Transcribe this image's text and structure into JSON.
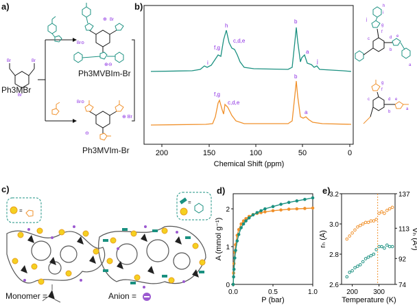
{
  "panels": {
    "a": "a)",
    "b": "b)",
    "c": "c)",
    "d": "d)",
    "e": "e)"
  },
  "scheme": {
    "start": "Ph3MBr",
    "product_top": "Ph3MVBIm-Br",
    "product_bottom": "Ph3MVIm-Br",
    "br": "Br",
    "br_minus": "Br"
  },
  "nmr": {
    "xlabel": "Chemical Shift (ppm)",
    "ticks": [
      "200",
      "150",
      "100",
      "50",
      "0"
    ],
    "top_peaks": [
      "i",
      "f,g",
      "h",
      "c,d,e",
      "b",
      "a",
      "j"
    ],
    "bottom_peaks": [
      "f,g",
      "c,d,e",
      "b",
      "a"
    ],
    "top_color": "#1a9080",
    "bottom_color": "#f0902a"
  },
  "polymer": {
    "monomer_label": "Monomer =",
    "anion_label": "Anion ="
  },
  "chart_data": [
    {
      "type": "scatter",
      "xlabel": "P (bar)",
      "ylabel": "A (mmol g⁻¹)",
      "xlim": [
        0,
        1.0
      ],
      "ylim": [
        0,
        2.4
      ],
      "xticks": [
        "0.0",
        "0.5",
        "1.0"
      ],
      "yticks": [
        "0",
        "1",
        "2"
      ],
      "series": [
        {
          "color": "#f0902a",
          "x": [
            0.0,
            0.005,
            0.01,
            0.02,
            0.03,
            0.05,
            0.07,
            0.1,
            0.13,
            0.16,
            0.2,
            0.25,
            0.3,
            0.35,
            0.4,
            0.5,
            0.6,
            0.7,
            0.8,
            0.9,
            1.0
          ],
          "y": [
            0.0,
            0.3,
            0.55,
            0.85,
            1.05,
            1.3,
            1.45,
            1.6,
            1.68,
            1.74,
            1.8,
            1.85,
            1.88,
            1.9,
            1.92,
            1.95,
            1.97,
            1.99,
            2.0,
            2.01,
            2.02
          ]
        },
        {
          "color": "#1a9080",
          "x": [
            0.0,
            0.005,
            0.01,
            0.02,
            0.03,
            0.05,
            0.07,
            0.1,
            0.13,
            0.16,
            0.2,
            0.25,
            0.3,
            0.35,
            0.4,
            0.5,
            0.6,
            0.7,
            0.8,
            0.9,
            1.0
          ],
          "y": [
            0.0,
            0.2,
            0.4,
            0.7,
            0.9,
            1.15,
            1.32,
            1.5,
            1.6,
            1.68,
            1.76,
            1.84,
            1.9,
            1.95,
            2.0,
            2.06,
            2.12,
            2.17,
            2.21,
            2.25,
            2.29
          ]
        }
      ]
    },
    {
      "type": "scatter",
      "xlabel": "Temperature (K)",
      "ylabel": "rₕ (Å)",
      "y2label": "Vₕ (Å³)",
      "xlim": [
        160,
        360
      ],
      "ylim": [
        2.6,
        3.2
      ],
      "y2lim": [
        74,
        137
      ],
      "xticks": [
        "200",
        "300"
      ],
      "yticks": [
        "2.6",
        "2.8",
        "3.0",
        "3.2"
      ],
      "y2ticks": [
        "74",
        "92",
        "113",
        "137"
      ],
      "vline": 295,
      "series": [
        {
          "color": "#f0902a",
          "x": [
            180,
            190,
            200,
            210,
            220,
            230,
            240,
            250,
            260,
            270,
            280,
            290,
            300,
            310,
            320,
            330,
            340,
            350
          ],
          "y": [
            2.9,
            2.92,
            2.94,
            2.96,
            2.98,
            2.99,
            3.0,
            3.01,
            3.01,
            3.02,
            3.02,
            3.03,
            3.07,
            3.08,
            3.07,
            3.09,
            3.1,
            3.11
          ]
        },
        {
          "color": "#1a9080",
          "x": [
            180,
            190,
            200,
            210,
            220,
            230,
            240,
            250,
            260,
            270,
            280,
            290,
            300,
            310,
            320,
            330,
            340,
            350
          ],
          "y": [
            2.65,
            2.68,
            2.69,
            2.71,
            2.72,
            2.73,
            2.75,
            2.77,
            2.78,
            2.79,
            2.8,
            2.83,
            2.85,
            2.85,
            2.84,
            2.86,
            2.85,
            2.85
          ]
        }
      ]
    }
  ]
}
